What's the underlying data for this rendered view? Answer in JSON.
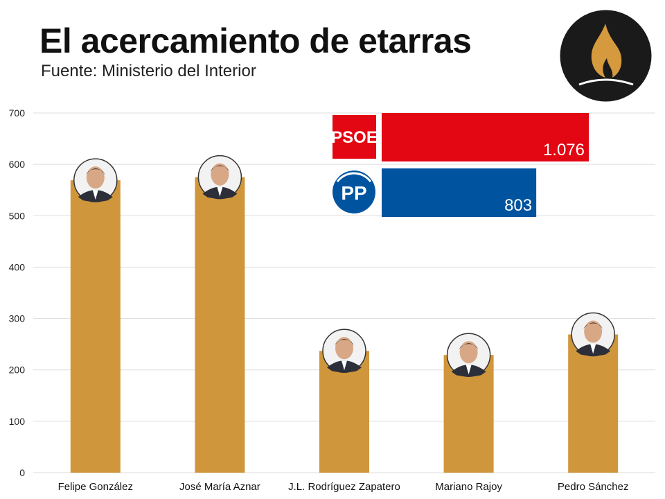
{
  "header": {
    "title": "El acercamiento de etarras",
    "subtitle": "Fuente: Ministerio del Interior"
  },
  "colors": {
    "bar": "#D0963B",
    "grid": "#DDDDDD",
    "psoe": "#E30613",
    "pp": "#00549F",
    "logo_bg": "#1A1A1A",
    "logo_flame": "#D59A3E"
  },
  "chart_data": {
    "type": "bar",
    "title": "El acercamiento de etarras",
    "subtitle": "Fuente: Ministerio del Interior",
    "xlabel": "",
    "ylabel": "",
    "ylim": [
      0,
      700
    ],
    "yticks": [
      0,
      100,
      200,
      300,
      400,
      500,
      600,
      700
    ],
    "ytick_labels": [
      "0",
      "100",
      "200",
      "300",
      "400",
      "500",
      "600",
      "700"
    ],
    "grid": true,
    "categories": [
      "Felipe González",
      "José María Aznar",
      "J.L. Rodríguez Zapatero",
      "Mariano Rajoy",
      "Pedro Sánchez"
    ],
    "values": [
      569,
      575,
      237,
      229,
      269
    ],
    "party_totals": {
      "type": "bar",
      "orientation": "horizontal",
      "categories": [
        "PSOE",
        "PP"
      ],
      "values": [
        1076,
        803
      ],
      "labels": [
        "1.076",
        "803"
      ]
    }
  }
}
